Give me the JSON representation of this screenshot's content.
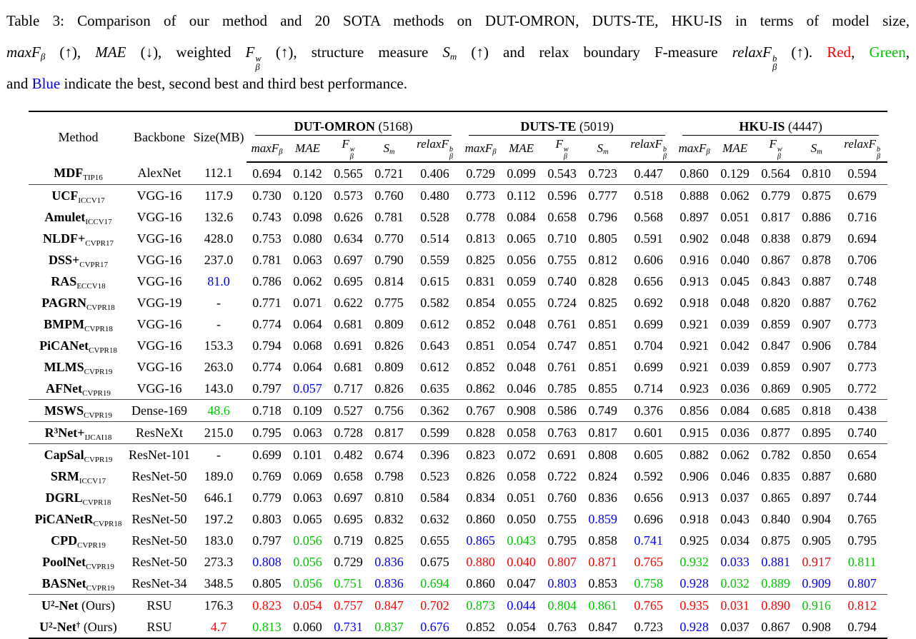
{
  "colors": {
    "r": "#ff0000",
    "g": "#00c800",
    "b": "#0000ff"
  },
  "caption": {
    "lines": [
      [
        {
          "t": "Table 3: Comparison of our method and 20 SOTA methods on DUT-OMRON, DUTS-TE, HKU-IS in terms of model size,"
        }
      ],
      [
        {
          "t": "maxF",
          "s": "i",
          "sub": "β"
        },
        {
          "t": " (↑), "
        },
        {
          "t": "MAE",
          "s": "i"
        },
        {
          "t": " (↓), weighted "
        },
        {
          "t": "F",
          "s": "i",
          "sup": "w",
          "sub": "β"
        },
        {
          "t": " (↑), structure measure "
        },
        {
          "t": "S",
          "s": "i",
          "sub": "m"
        },
        {
          "t": " (↑) and relax boundary F-measure "
        },
        {
          "t": "relaxF",
          "s": "i",
          "sup": "b",
          "sub": "β"
        },
        {
          "t": " (↑). "
        },
        {
          "t": "Red",
          "c": "r"
        },
        {
          "t": ", "
        },
        {
          "t": "Green",
          "c": "g"
        },
        {
          "t": ","
        }
      ],
      [
        {
          "t": "and "
        },
        {
          "t": "Blue",
          "c": "b"
        },
        {
          "t": " indicate the best, second best and third best performance."
        }
      ]
    ]
  },
  "table": {
    "fixed_headers": [
      "Method",
      "Backbone",
      "Size(MB)"
    ],
    "groups": [
      {
        "name": "DUT-OMRON",
        "count": "(5168)"
      },
      {
        "name": "DUTS-TE",
        "count": "(5019)"
      },
      {
        "name": "HKU-IS",
        "count": "(4447)"
      }
    ],
    "metrics": [
      {
        "t": "maxF",
        "sub": "β"
      },
      {
        "t": "MAE"
      },
      {
        "t": "F",
        "sup": "w",
        "sub": "β"
      },
      {
        "t": "S",
        "sub": "m"
      },
      {
        "t": "relaxF",
        "sup": "b",
        "sub": "β"
      }
    ],
    "rows": [
      {
        "m": [
          {
            "t": "MDF"
          }
        ],
        "venue": "TIP16",
        "backbone": "AlexNet",
        "size": "112.1",
        "cells": [
          "0.694",
          "0.142",
          "0.565",
          "0.721",
          "0.406",
          "0.729",
          "0.099",
          "0.543",
          "0.723",
          "0.447",
          "0.860",
          "0.129",
          "0.564",
          "0.810",
          "0.594"
        ],
        "rule": true
      },
      {
        "m": [
          {
            "t": "UCF"
          }
        ],
        "venue": "ICCV17",
        "backbone": "VGG-16",
        "size": "117.9",
        "cells": [
          "0.730",
          "0.120",
          "0.573",
          "0.760",
          "0.480",
          "0.773",
          "0.112",
          "0.596",
          "0.777",
          "0.518",
          "0.888",
          "0.062",
          "0.779",
          "0.875",
          "0.679"
        ]
      },
      {
        "m": [
          {
            "t": "Amulet"
          }
        ],
        "venue": "ICCV17",
        "backbone": "VGG-16",
        "size": "132.6",
        "cells": [
          "0.743",
          "0.098",
          "0.626",
          "0.781",
          "0.528",
          "0.778",
          "0.084",
          "0.658",
          "0.796",
          "0.568",
          "0.897",
          "0.051",
          "0.817",
          "0.886",
          "0.716"
        ]
      },
      {
        "m": [
          {
            "t": "NLDF+"
          }
        ],
        "venue": "CVPR17",
        "backbone": "VGG-16",
        "size": "428.0",
        "cells": [
          "0.753",
          "0.080",
          "0.634",
          "0.770",
          "0.514",
          "0.813",
          "0.065",
          "0.710",
          "0.805",
          "0.591",
          "0.902",
          "0.048",
          "0.838",
          "0.879",
          "0.694"
        ]
      },
      {
        "m": [
          {
            "t": "DSS+"
          }
        ],
        "venue": "CVPR17",
        "backbone": "VGG-16",
        "size": "237.0",
        "cells": [
          "0.781",
          "0.063",
          "0.697",
          "0.790",
          "0.559",
          "0.825",
          "0.056",
          "0.755",
          "0.812",
          "0.606",
          "0.916",
          "0.040",
          "0.867",
          "0.878",
          "0.706"
        ]
      },
      {
        "m": [
          {
            "t": "RAS"
          }
        ],
        "venue": "ECCV18",
        "backbone": "VGG-16",
        "size": "81.0|b",
        "cells": [
          "0.786",
          "0.062",
          "0.695",
          "0.814",
          "0.615",
          "0.831",
          "0.059",
          "0.740",
          "0.828",
          "0.656",
          "0.913",
          "0.045",
          "0.843",
          "0.887",
          "0.748"
        ]
      },
      {
        "m": [
          {
            "t": "PAGRN"
          }
        ],
        "venue": "CVPR18",
        "backbone": "VGG-19",
        "size": "-",
        "cells": [
          "0.771",
          "0.071",
          "0.622",
          "0.775",
          "0.582",
          "0.854",
          "0.055",
          "0.724",
          "0.825",
          "0.692",
          "0.918",
          "0.048",
          "0.820",
          "0.887",
          "0.762"
        ]
      },
      {
        "m": [
          {
            "t": "BMPM"
          }
        ],
        "venue": "CVPR18",
        "backbone": "VGG-16",
        "size": "-",
        "cells": [
          "0.774",
          "0.064",
          "0.681",
          "0.809",
          "0.612",
          "0.852",
          "0.048",
          "0.761",
          "0.851",
          "0.699",
          "0.921",
          "0.039",
          "0.859",
          "0.907",
          "0.773"
        ]
      },
      {
        "m": [
          {
            "t": "PiCANet"
          }
        ],
        "venue": "CVPR18",
        "backbone": "VGG-16",
        "size": "153.3",
        "cells": [
          "0.794",
          "0.068",
          "0.691",
          "0.826",
          "0.643",
          "0.851",
          "0.054",
          "0.747",
          "0.851",
          "0.704",
          "0.921",
          "0.042",
          "0.847",
          "0.906",
          "0.784"
        ]
      },
      {
        "m": [
          {
            "t": "MLMS"
          }
        ],
        "venue": "CVPR19",
        "backbone": "VGG-16",
        "size": "263.0",
        "cells": [
          "0.774",
          "0.064",
          "0.681",
          "0.809",
          "0.612",
          "0.852",
          "0.048",
          "0.761",
          "0.851",
          "0.699",
          "0.921",
          "0.039",
          "0.859",
          "0.907",
          "0.773"
        ]
      },
      {
        "m": [
          {
            "t": "AFNet"
          }
        ],
        "venue": "CVPR19",
        "backbone": "VGG-16",
        "size": "143.0",
        "cells": [
          "0.797",
          "0.057|b",
          "0.717",
          "0.826",
          "0.635",
          "0.862",
          "0.046",
          "0.785",
          "0.855",
          "0.714",
          "0.923",
          "0.036",
          "0.869",
          "0.905",
          "0.772"
        ],
        "rule": true
      },
      {
        "m": [
          {
            "t": "MSWS"
          }
        ],
        "venue": "CVPR19",
        "backbone": "Dense-169",
        "size": "48.6|g",
        "cells": [
          "0.718",
          "0.109",
          "0.527",
          "0.756",
          "0.362",
          "0.767",
          "0.908",
          "0.586",
          "0.749",
          "0.376",
          "0.856",
          "0.084",
          "0.685",
          "0.818",
          "0.438"
        ],
        "rule": true
      },
      {
        "m": [
          {
            "t": "R",
            "sup": "3"
          },
          {
            "t": "Net+"
          }
        ],
        "venue": "IJCAI18",
        "backbone": "ResNeXt",
        "size": "215.0",
        "cells": [
          "0.795",
          "0.063",
          "0.728",
          "0.817",
          "0.599",
          "0.828",
          "0.058",
          "0.763",
          "0.817",
          "0.601",
          "0.915",
          "0.036",
          "0.877",
          "0.895",
          "0.740"
        ],
        "rule": true
      },
      {
        "m": [
          {
            "t": "CapSal"
          }
        ],
        "venue": "CVPR19",
        "backbone": "ResNet-101",
        "size": "-",
        "cells": [
          "0.699",
          "0.101",
          "0.482",
          "0.674",
          "0.396",
          "0.823",
          "0.072",
          "0.691",
          "0.808",
          "0.605",
          "0.882",
          "0.062",
          "0.782",
          "0.850",
          "0.654"
        ]
      },
      {
        "m": [
          {
            "t": "SRM"
          }
        ],
        "venue": "ICCV17",
        "backbone": "ResNet-50",
        "size": "189.0",
        "cells": [
          "0.769",
          "0.069",
          "0.658",
          "0.798",
          "0.523",
          "0.826",
          "0.058",
          "0.722",
          "0.824",
          "0.592",
          "0.906",
          "0.046",
          "0.835",
          "0.887",
          "0.680"
        ]
      },
      {
        "m": [
          {
            "t": "DGRL"
          }
        ],
        "venue": "CVPR18",
        "backbone": "ResNet-50",
        "size": "646.1",
        "cells": [
          "0.779",
          "0.063",
          "0.697",
          "0.810",
          "0.584",
          "0.834",
          "0.051",
          "0.760",
          "0.836",
          "0.656",
          "0.913",
          "0.037",
          "0.865",
          "0.897",
          "0.744"
        ]
      },
      {
        "m": [
          {
            "t": "PiCANetR"
          }
        ],
        "venue": "CVPR18",
        "backbone": "ResNet-50",
        "size": "197.2",
        "cells": [
          "0.803",
          "0.065",
          "0.695",
          "0.832",
          "0.632",
          "0.860",
          "0.050",
          "0.755",
          "0.859|b",
          "0.696",
          "0.918",
          "0.043",
          "0.840",
          "0.904",
          "0.765"
        ]
      },
      {
        "m": [
          {
            "t": "CPD"
          }
        ],
        "venue": "CVPR19",
        "backbone": "ResNet-50",
        "size": "183.0",
        "cells": [
          "0.797",
          "0.056|g",
          "0.719",
          "0.825",
          "0.655",
          "0.865|b",
          "0.043|g",
          "0.795",
          "0.858",
          "0.741|b",
          "0.925",
          "0.034",
          "0.875",
          "0.905",
          "0.795"
        ]
      },
      {
        "m": [
          {
            "t": "PoolNet"
          }
        ],
        "venue": "CVPR19",
        "backbone": "ResNet-50",
        "size": "273.3",
        "cells": [
          "0.808|b",
          "0.056|g",
          "0.729",
          "0.836|b",
          "0.675",
          "0.880|r",
          "0.040|r",
          "0.807|r",
          "0.871|r",
          "0.765|r",
          "0.932|g",
          "0.033|b",
          "0.881|b",
          "0.917|r",
          "0.811|g"
        ]
      },
      {
        "m": [
          {
            "t": "BASNet"
          }
        ],
        "venue": "CVPR19",
        "backbone": "ResNet-34",
        "size": "348.5",
        "cells": [
          "0.805",
          "0.056|g",
          "0.751|g",
          "0.836|b",
          "0.694|g",
          "0.860",
          "0.047",
          "0.803|b",
          "0.853",
          "0.758|g",
          "0.928|b",
          "0.032|g",
          "0.889|g",
          "0.909|b",
          "0.807|b"
        ],
        "rule": true
      },
      {
        "m": [
          {
            "t": "U",
            "sup": "2"
          },
          {
            "t": "-Net"
          }
        ],
        "suffix": " (Ours)",
        "backbone": "RSU",
        "size": "176.3",
        "cells": [
          "0.823|r",
          "0.054|r",
          "0.757|r",
          "0.847|r",
          "0.702|r",
          "0.873|g",
          "0.044|b",
          "0.804|g",
          "0.861|g",
          "0.765|r",
          "0.935|r",
          "0.031|r",
          "0.890|r",
          "0.916|g",
          "0.812|r"
        ]
      },
      {
        "m": [
          {
            "t": "U",
            "sup": "2"
          },
          {
            "t": "-Net",
            "sup": "†"
          }
        ],
        "suffix": " (Ours)",
        "backbone": "RSU",
        "size": "4.7|r",
        "cells": [
          "0.813|g",
          "0.060",
          "0.731|b",
          "0.837|g",
          "0.676|b",
          "0.852",
          "0.054",
          "0.763",
          "0.847",
          "0.723",
          "0.928|b",
          "0.037",
          "0.867",
          "0.908",
          "0.794"
        ]
      }
    ]
  }
}
